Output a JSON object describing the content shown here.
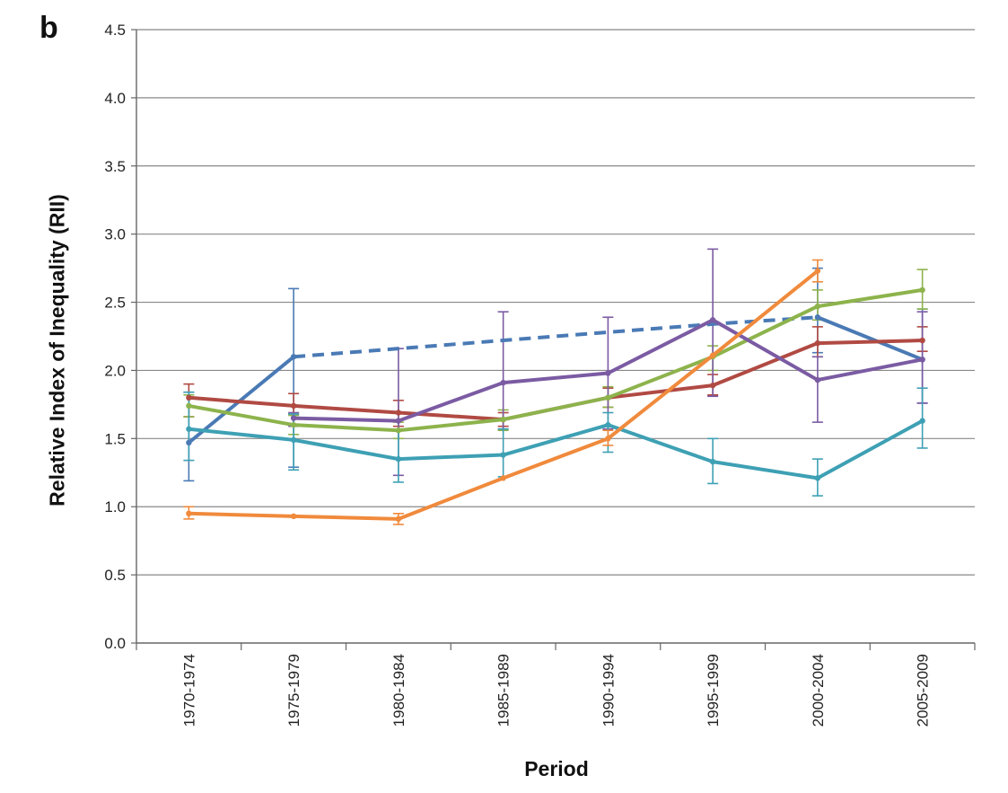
{
  "panel_label": "b",
  "chart_data": {
    "type": "line",
    "xlabel": "Period",
    "ylabel": "Relative Index of Inequality (RII)",
    "categories": [
      "1970-1974",
      "1975-1979",
      "1980-1984",
      "1985-1989",
      "1990-1994",
      "1995-1999",
      "2000-2004",
      "2005-2009"
    ],
    "ylim": [
      0,
      4.5
    ],
    "yticks": [
      "0.0",
      "0.5",
      "1.0",
      "1.5",
      "2.0",
      "2.5",
      "3.0",
      "3.5",
      "4.0",
      "4.5"
    ],
    "grid": "horizontal",
    "series": [
      {
        "color": "#4a7ab5",
        "values": [
          1.47,
          2.1,
          null,
          null,
          null,
          null,
          2.39,
          2.08
        ],
        "errors": [
          [
            1.19,
            1.84
          ],
          [
            1.29,
            2.6
          ],
          null,
          null,
          null,
          null,
          [
            2.13,
            2.75
          ],
          [
            1.76,
            2.45
          ]
        ]
      },
      {
        "color": "#4a7ab5",
        "dashed": true,
        "values": [
          null,
          2.1,
          2.16,
          2.22,
          2.28,
          2.34,
          2.39,
          null
        ],
        "errors": []
      },
      {
        "color": "#b04a43",
        "values": [
          1.8,
          1.74,
          1.69,
          1.64,
          1.8,
          1.89,
          2.2,
          2.22
        ],
        "errors": [
          [
            1.66,
            1.9
          ],
          [
            1.68,
            1.83
          ],
          [
            1.59,
            1.78
          ],
          [
            1.59,
            1.69
          ],
          [
            1.73,
            1.87
          ],
          [
            1.82,
            1.97
          ],
          [
            2.1,
            2.32
          ],
          [
            2.14,
            2.32
          ]
        ]
      },
      {
        "color": "#8db34c",
        "values": [
          1.74,
          1.6,
          1.56,
          1.64,
          1.8,
          2.1,
          2.47,
          2.59
        ],
        "errors": [
          [
            1.66,
            1.82
          ],
          [
            1.53,
            1.67
          ],
          [
            1.5,
            1.62
          ],
          [
            1.56,
            1.71
          ],
          [
            1.73,
            1.88
          ],
          [
            2.0,
            2.18
          ],
          [
            2.37,
            2.59
          ],
          [
            2.45,
            2.74
          ]
        ]
      },
      {
        "color": "#7b5ba3",
        "values": [
          null,
          1.65,
          1.63,
          1.91,
          1.98,
          2.37,
          1.93,
          2.08
        ],
        "errors": [
          null,
          [
            1.59,
            1.69
          ],
          [
            1.23,
            2.16
          ],
          [
            1.57,
            2.43
          ],
          [
            1.57,
            2.39
          ],
          [
            1.81,
            2.89
          ],
          [
            1.62,
            2.1
          ],
          [
            1.76,
            2.43
          ]
        ]
      },
      {
        "color": "#3ea0b4",
        "values": [
          1.57,
          1.49,
          1.35,
          1.38,
          1.6,
          1.33,
          1.21,
          1.63
        ],
        "errors": [
          [
            1.34,
            1.84
          ],
          [
            1.27,
            1.68
          ],
          [
            1.18,
            1.56
          ],
          [
            1.22,
            1.57
          ],
          [
            1.4,
            1.69
          ],
          [
            1.17,
            1.5
          ],
          [
            1.08,
            1.35
          ],
          [
            1.43,
            1.87
          ]
        ]
      },
      {
        "color": "#f08a3c",
        "values": [
          0.95,
          0.93,
          0.91,
          1.21,
          1.5,
          2.11,
          2.73,
          null
        ],
        "errors": [
          [
            0.91,
            1.0
          ],
          null,
          [
            0.87,
            0.95
          ],
          null,
          [
            1.45,
            1.56
          ],
          null,
          [
            2.65,
            2.81
          ],
          null
        ]
      }
    ]
  }
}
